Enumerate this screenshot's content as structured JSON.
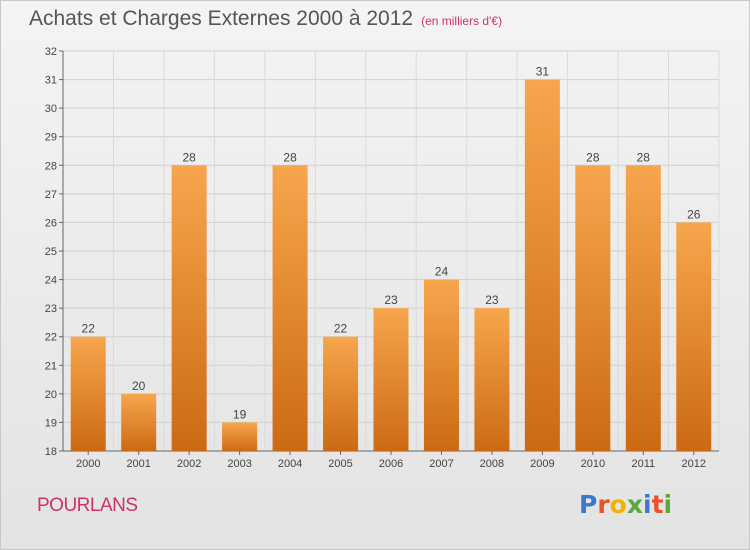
{
  "chart_data": {
    "type": "bar",
    "title": "Achats et Charges Externes 2000 à 2012",
    "subtitle": "(en milliers d'€)",
    "categories": [
      "2000",
      "2001",
      "2002",
      "2003",
      "2004",
      "2005",
      "2006",
      "2007",
      "2008",
      "2009",
      "2010",
      "2011",
      "2012"
    ],
    "values": [
      22,
      20,
      28,
      19,
      28,
      22,
      23,
      24,
      23,
      31,
      28,
      28,
      26
    ],
    "ylim": [
      18,
      32
    ],
    "yticks": [
      18,
      19,
      20,
      21,
      22,
      23,
      24,
      25,
      26,
      27,
      28,
      29,
      30,
      31,
      32
    ],
    "grid": true,
    "bar_color_top": "#f7a64d",
    "bar_color_bottom": "#cc6a14"
  },
  "footer": {
    "location": "POURLANS",
    "brand": "Proxiti",
    "brand_colors": [
      "#3a78c9",
      "#e8532b",
      "#f0b400",
      "#5aa83a",
      "#3a78c9",
      "#e8532b",
      "#5aa83a"
    ]
  }
}
